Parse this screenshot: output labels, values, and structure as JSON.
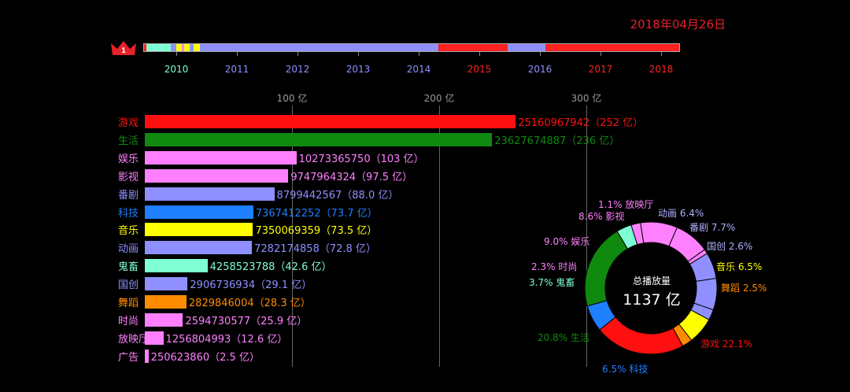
{
  "header": {
    "date": "2018年04月26日",
    "date_color": "#e8202a",
    "rank_badge": "1",
    "crown_color": "#e8202a"
  },
  "timeline": {
    "years": [
      "2010",
      "2011",
      "2012",
      "2013",
      "2014",
      "2015",
      "2016",
      "2017",
      "2018"
    ],
    "year_colors": [
      "#7fffd4",
      "#8f8fff",
      "#8f8fff",
      "#8f8fff",
      "#8f8fff",
      "#ff2020",
      "#8f8fff",
      "#ff2020",
      "#ff2020"
    ],
    "segments": [
      {
        "share": 0.005,
        "color": "#ff2020"
      },
      {
        "share": 0.045,
        "color": "#7fffd4"
      },
      {
        "share": 0.01,
        "color": "#8f8fff"
      },
      {
        "share": 0.01,
        "color": "#ffff00"
      },
      {
        "share": 0.005,
        "color": "#ff80ff"
      },
      {
        "share": 0.01,
        "color": "#ffff00"
      },
      {
        "share": 0.008,
        "color": "#8f8fff"
      },
      {
        "share": 0.012,
        "color": "#ffff00"
      },
      {
        "share": 0.445,
        "color": "#8f8fff"
      },
      {
        "share": 0.13,
        "color": "#ff2020"
      },
      {
        "share": 0.07,
        "color": "#8f8fff"
      },
      {
        "share": 0.25,
        "color": "#ff2020"
      }
    ]
  },
  "chart_data": [
    {
      "type": "bar",
      "orientation": "horizontal",
      "unit_label": "亿",
      "xlim": [
        0,
        380
      ],
      "xticks": [
        100,
        200,
        300
      ],
      "xtick_labels": [
        "100 亿",
        "200 亿",
        "300 亿"
      ],
      "categories": [
        "游戏",
        "生活",
        "娱乐",
        "影视",
        "番剧",
        "科技",
        "音乐",
        "动画",
        "鬼畜",
        "国创",
        "舞蹈",
        "时尚",
        "放映厅",
        "广告"
      ],
      "raw_values": [
        "25160967942",
        "23627674887",
        "10273365750",
        "9747964324",
        "8799442567",
        "7367412252",
        "7350069359",
        "7282174858",
        "4258523788",
        "2906736934",
        "2829846004",
        "2594730577",
        "1256804993",
        "250623860"
      ],
      "values": [
        252,
        236,
        103,
        97.5,
        88.0,
        73.7,
        73.5,
        72.8,
        42.6,
        29.1,
        28.3,
        25.9,
        12.6,
        2.5
      ],
      "value_texts": [
        "252 亿",
        "236 亿",
        "103 亿",
        "97.5 亿",
        "88.0 亿",
        "73.7 亿",
        "73.5 亿",
        "72.8 亿",
        "42.6 亿",
        "29.1 亿",
        "28.3 亿",
        "25.9 亿",
        "12.6 亿",
        "2.5 亿"
      ],
      "colors": [
        "#ff1010",
        "#0f8a0f",
        "#ff80ff",
        "#ff80ff",
        "#8f8fff",
        "#1e7fff",
        "#ffff00",
        "#8f8fff",
        "#7fffd4",
        "#8f8fff",
        "#ff8c00",
        "#ff80ff",
        "#ff80ff",
        "#ff80ff"
      ]
    },
    {
      "type": "pie",
      "style": "donut",
      "center_title": "总播放量",
      "center_total": "1137 亿",
      "slices": [
        {
          "label": "游戏",
          "pct": 22.1,
          "pct_text": "22.1%",
          "color": "#ff1010"
        },
        {
          "label": "科技",
          "pct": 6.5,
          "pct_text": "6.5%",
          "color": "#1e7fff"
        },
        {
          "label": "生活",
          "pct": 20.8,
          "pct_text": "20.8%",
          "color": "#0f8a0f"
        },
        {
          "label": "鬼畜",
          "pct": 3.7,
          "pct_text": "3.7%",
          "color": "#7fffd4"
        },
        {
          "label": "时尚",
          "pct": 2.3,
          "pct_text": "2.3%",
          "color": "#ff80ff"
        },
        {
          "label": "娱乐",
          "pct": 9.0,
          "pct_text": "9.0%",
          "color": "#ff80ff"
        },
        {
          "label": "影视",
          "pct": 8.6,
          "pct_text": "8.6%",
          "color": "#ff80ff"
        },
        {
          "label": "放映厅",
          "pct": 1.1,
          "pct_text": "1.1%",
          "color": "#ff80ff"
        },
        {
          "label": "动画",
          "pct": 6.4,
          "pct_text": "6.4%",
          "color": "#8f8fff"
        },
        {
          "label": "番剧",
          "pct": 7.7,
          "pct_text": "7.7%",
          "color": "#8f8fff"
        },
        {
          "label": "国创",
          "pct": 2.6,
          "pct_text": "2.6%",
          "color": "#8f8fff"
        },
        {
          "label": "音乐",
          "pct": 6.5,
          "pct_text": "6.5%",
          "color": "#ffff00"
        },
        {
          "label": "舞蹈",
          "pct": 2.5,
          "pct_text": "2.5%",
          "color": "#ff8c00"
        }
      ]
    }
  ]
}
